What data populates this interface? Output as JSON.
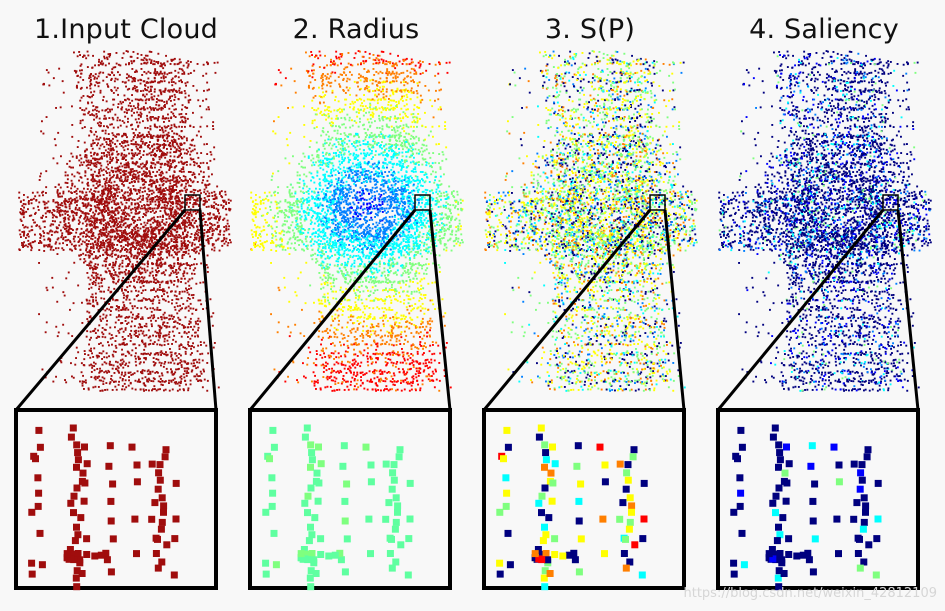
{
  "panels": [
    {
      "title": "1.Input Cloud",
      "colormap": "red"
    },
    {
      "title": "2. Radius",
      "colormap": "radius"
    },
    {
      "title": "3. S(P)",
      "colormap": "sp"
    },
    {
      "title": "4. Saliency",
      "colormap": "saliency"
    }
  ],
  "colors": {
    "background": "#f8f8f8",
    "input_red": "#a00d0d",
    "frame": "#000000",
    "jet": [
      "#00007f",
      "#0000ff",
      "#007fff",
      "#00ffff",
      "#7fff7f",
      "#ffff00",
      "#ff7f00",
      "#ff0000",
      "#7f0000"
    ]
  },
  "watermark": "https://blog.csdn.net/weixin_42812109"
}
